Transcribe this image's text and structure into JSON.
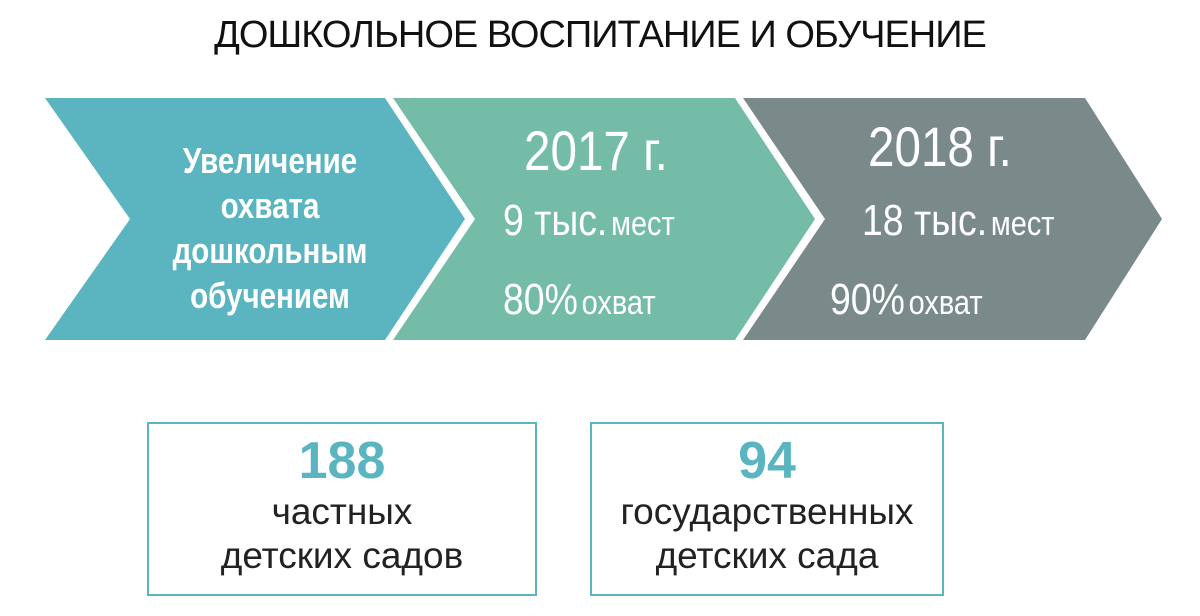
{
  "title": "ДОШКОЛЬНОЕ ВОСПИТАНИЕ И ОБУЧЕНИЕ",
  "colors": {
    "step1": "#5ab5c0",
    "step2": "#74bca8",
    "step3": "#7a8a8b",
    "box_border": "#5ab5c0",
    "box_number": "#5ab5c0"
  },
  "steps": [
    {
      "lines": [
        "Увеличение",
        "охвата",
        "дошкольным",
        "обучением"
      ]
    },
    {
      "year": "2017 г.",
      "places_num": "9 тыс.",
      "places_unit": "мест",
      "coverage_num": "80%",
      "coverage_unit": "охват"
    },
    {
      "year": "2018 г.",
      "places_num": "18 тыс.",
      "places_unit": "мест",
      "coverage_num": "90%",
      "coverage_unit": "охват"
    }
  ],
  "boxes": [
    {
      "number": "188",
      "lines": [
        "частных",
        "детских садов"
      ]
    },
    {
      "number": "94",
      "lines": [
        "государственных",
        "детских сада"
      ]
    }
  ]
}
